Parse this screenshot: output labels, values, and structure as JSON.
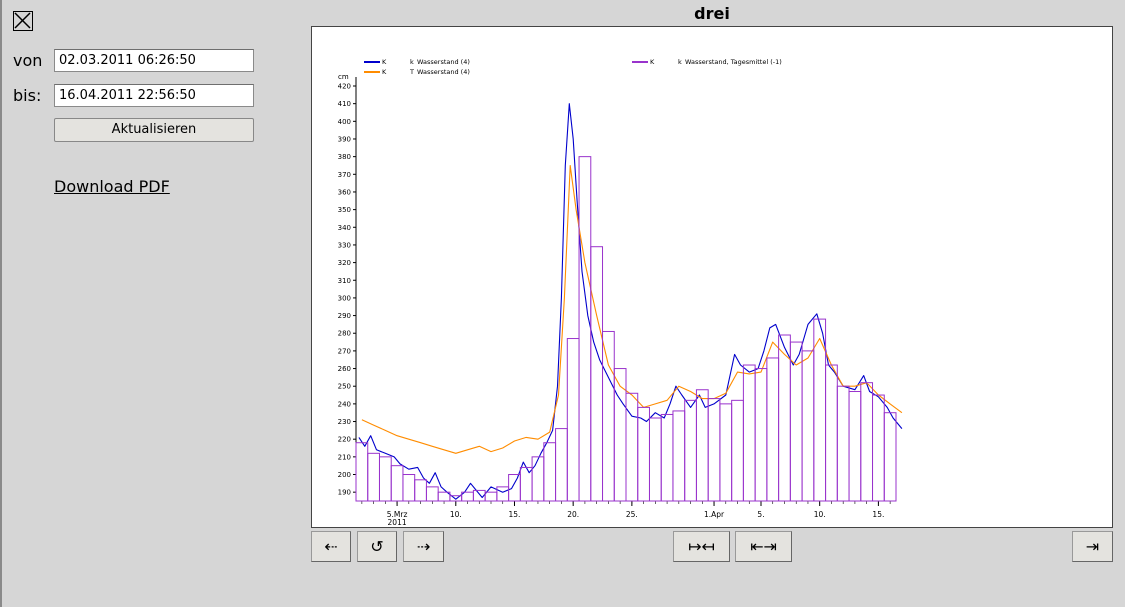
{
  "window": {
    "close_icon": "close-box-icon"
  },
  "form": {
    "von_label": "von",
    "von_value": "02.03.2011 06:26:50",
    "bis_label": "bis:",
    "bis_value": "16.04.2011 22:56:50",
    "refresh_label": "Aktualisieren",
    "download_label": "Download PDF"
  },
  "chart": {
    "title": "drei"
  },
  "nav": {
    "back": "⇠",
    "reload": "↺",
    "forward": "⇢",
    "zoom_in": "↦↤",
    "zoom_out": "⇤⇥",
    "to_end": "⇥"
  },
  "chart_data": {
    "type": "line",
    "ylabel": "cm",
    "ylim": [
      185,
      420
    ],
    "yticks": [
      190,
      200,
      210,
      220,
      230,
      240,
      250,
      260,
      270,
      280,
      290,
      300,
      310,
      320,
      330,
      340,
      350,
      360,
      370,
      380,
      390,
      400,
      410,
      420
    ],
    "x_range": [
      "2011-03-02",
      "2011-04-17"
    ],
    "x_ticks": [
      {
        "date": "2011-03-05",
        "label": "5.Mrz",
        "sub": "2011"
      },
      {
        "date": "2011-03-10",
        "label": "10."
      },
      {
        "date": "2011-03-15",
        "label": "15."
      },
      {
        "date": "2011-03-20",
        "label": "20."
      },
      {
        "date": "2011-03-25",
        "label": "25."
      },
      {
        "date": "2011-04-01",
        "label": "1.Apr"
      },
      {
        "date": "2011-04-05",
        "label": "5."
      },
      {
        "date": "2011-04-10",
        "label": "10."
      },
      {
        "date": "2011-04-15",
        "label": "15."
      }
    ],
    "legend_position": "top",
    "series": [
      {
        "name": "Wasserstand (4)",
        "legend_prefix": "K",
        "legend_mid": "k",
        "color": "#0000cc",
        "points": [
          [
            "2011-03-02",
            221
          ],
          [
            "2011-03-02",
            216
          ],
          [
            "2011-03-03",
            222
          ],
          [
            "2011-03-03",
            214
          ],
          [
            "2011-03-04",
            212
          ],
          [
            "2011-03-05",
            210
          ],
          [
            "2011-03-05",
            206
          ],
          [
            "2011-03-06",
            203
          ],
          [
            "2011-03-07",
            204
          ],
          [
            "2011-03-07",
            198
          ],
          [
            "2011-03-08",
            195
          ],
          [
            "2011-03-08",
            201
          ],
          [
            "2011-03-09",
            193
          ],
          [
            "2011-03-09",
            190
          ],
          [
            "2011-03-10",
            186
          ],
          [
            "2011-03-11",
            190
          ],
          [
            "2011-03-11",
            195
          ],
          [
            "2011-03-12",
            191
          ],
          [
            "2011-03-12",
            187
          ],
          [
            "2011-03-13",
            193
          ],
          [
            "2011-03-14",
            190
          ],
          [
            "2011-03-15",
            192
          ],
          [
            "2011-03-15",
            198
          ],
          [
            "2011-03-16",
            207
          ],
          [
            "2011-03-16",
            201
          ],
          [
            "2011-03-17",
            205
          ],
          [
            "2011-03-17",
            212
          ],
          [
            "2011-03-18",
            218
          ],
          [
            "2011-03-18",
            225
          ],
          [
            "2011-03-19",
            250
          ],
          [
            "2011-03-19",
            300
          ],
          [
            "2011-03-19",
            375
          ],
          [
            "2011-03-20",
            410
          ],
          [
            "2011-03-20",
            390
          ],
          [
            "2011-03-20",
            355
          ],
          [
            "2011-03-21",
            315
          ],
          [
            "2011-03-21",
            290
          ],
          [
            "2011-03-22",
            275
          ],
          [
            "2011-03-22",
            265
          ],
          [
            "2011-03-23",
            255
          ],
          [
            "2011-03-24",
            245
          ],
          [
            "2011-03-24",
            240
          ],
          [
            "2011-03-25",
            233
          ],
          [
            "2011-03-26",
            232
          ],
          [
            "2011-03-26",
            230
          ],
          [
            "2011-03-27",
            235
          ],
          [
            "2011-03-28",
            232
          ],
          [
            "2011-03-28",
            240
          ],
          [
            "2011-03-29",
            250
          ],
          [
            "2011-03-29",
            245
          ],
          [
            "2011-03-30",
            238
          ],
          [
            "2011-03-31",
            245
          ],
          [
            "2011-03-31",
            238
          ],
          [
            "2011-04-01",
            240
          ],
          [
            "2011-04-02",
            245
          ],
          [
            "2011-04-03",
            268
          ],
          [
            "2011-04-03",
            262
          ],
          [
            "2011-04-04",
            258
          ],
          [
            "2011-04-05",
            260
          ],
          [
            "2011-04-05",
            270
          ],
          [
            "2011-04-06",
            283
          ],
          [
            "2011-04-06",
            285
          ],
          [
            "2011-04-07",
            272
          ],
          [
            "2011-04-08",
            262
          ],
          [
            "2011-04-08",
            268
          ],
          [
            "2011-04-09",
            285
          ],
          [
            "2011-04-10",
            291
          ],
          [
            "2011-04-10",
            280
          ],
          [
            "2011-04-11",
            262
          ],
          [
            "2011-04-11",
            258
          ],
          [
            "2011-04-12",
            250
          ],
          [
            "2011-04-13",
            248
          ],
          [
            "2011-04-14",
            256
          ],
          [
            "2011-04-14",
            247
          ],
          [
            "2011-04-15",
            244
          ],
          [
            "2011-04-16",
            238
          ],
          [
            "2011-04-16",
            232
          ],
          [
            "2011-04-17",
            226
          ]
        ]
      },
      {
        "name": "Wasserstand (4)",
        "legend_prefix": "K",
        "legend_mid": "T",
        "color": "#ff8c00",
        "points": [
          [
            "2011-03-02",
            231
          ],
          [
            "2011-03-03",
            228
          ],
          [
            "2011-03-04",
            225
          ],
          [
            "2011-03-05",
            222
          ],
          [
            "2011-03-06",
            220
          ],
          [
            "2011-03-07",
            218
          ],
          [
            "2011-03-08",
            216
          ],
          [
            "2011-03-09",
            214
          ],
          [
            "2011-03-10",
            212
          ],
          [
            "2011-03-11",
            214
          ],
          [
            "2011-03-12",
            216
          ],
          [
            "2011-03-13",
            213
          ],
          [
            "2011-03-14",
            215
          ],
          [
            "2011-03-15",
            219
          ],
          [
            "2011-03-16",
            221
          ],
          [
            "2011-03-17",
            220
          ],
          [
            "2011-03-18",
            224
          ],
          [
            "2011-03-19",
            245
          ],
          [
            "2011-03-19",
            300
          ],
          [
            "2011-03-20",
            375
          ],
          [
            "2011-03-20",
            350
          ],
          [
            "2011-03-21",
            320
          ],
          [
            "2011-03-22",
            290
          ],
          [
            "2011-03-23",
            262
          ],
          [
            "2011-03-24",
            250
          ],
          [
            "2011-03-25",
            245
          ],
          [
            "2011-03-26",
            238
          ],
          [
            "2011-03-27",
            240
          ],
          [
            "2011-03-28",
            242
          ],
          [
            "2011-03-29",
            250
          ],
          [
            "2011-03-30",
            247
          ],
          [
            "2011-03-31",
            243
          ],
          [
            "2011-04-01",
            243
          ],
          [
            "2011-04-02",
            246
          ],
          [
            "2011-04-03",
            258
          ],
          [
            "2011-04-04",
            257
          ],
          [
            "2011-04-05",
            258
          ],
          [
            "2011-04-06",
            275
          ],
          [
            "2011-04-07",
            268
          ],
          [
            "2011-04-08",
            262
          ],
          [
            "2011-04-09",
            266
          ],
          [
            "2011-04-10",
            277
          ],
          [
            "2011-04-11",
            262
          ],
          [
            "2011-04-12",
            250
          ],
          [
            "2011-04-13",
            250
          ],
          [
            "2011-04-14",
            252
          ],
          [
            "2011-04-15",
            245
          ],
          [
            "2011-04-16",
            240
          ],
          [
            "2011-04-17",
            235
          ]
        ]
      },
      {
        "name": "Wasserstand, Tagesmittel (-1)",
        "legend_prefix": "K",
        "legend_mid": "k",
        "color": "#9933cc",
        "step_daily": true,
        "values": [
          218,
          212,
          210,
          205,
          200,
          197,
          193,
          190,
          188,
          190,
          191,
          190,
          193,
          200,
          204,
          210,
          218,
          226,
          277,
          380,
          329,
          281,
          260,
          246,
          238,
          232,
          234,
          236,
          242,
          248,
          243,
          240,
          242,
          262,
          260,
          266,
          279,
          275,
          270,
          288,
          262,
          250,
          247,
          252,
          245,
          235,
          232
        ]
      }
    ]
  }
}
